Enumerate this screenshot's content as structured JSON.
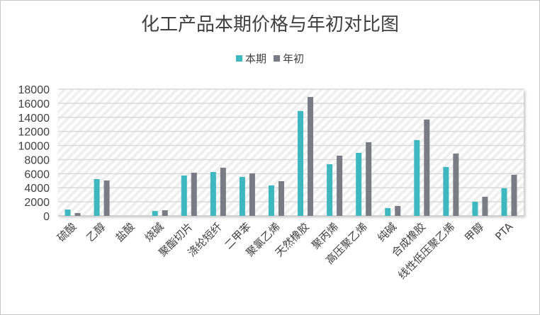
{
  "chart_data": {
    "type": "bar",
    "title": "化工产品本期价格与年初对比图",
    "xlabel": "",
    "ylabel": "",
    "ylim": [
      0,
      18000
    ],
    "yticks": [
      0,
      2000,
      4000,
      6000,
      8000,
      10000,
      12000,
      14000,
      16000,
      18000
    ],
    "grid": true,
    "legend_position": "top",
    "categories": [
      "硫酸",
      "乙醇",
      "盐酸",
      "烧碱",
      "聚酯切片",
      "涤纶短纤",
      "二甲苯",
      "聚氯乙烯",
      "天然橡胶",
      "聚丙烯",
      "高压聚乙烯",
      "纯碱",
      "合成橡胶",
      "线性低压聚乙烯",
      "甲醇",
      "PTA"
    ],
    "series": [
      {
        "name": "本期",
        "color": "#3eb8c0",
        "values": [
          900,
          5230,
          0,
          700,
          5740,
          6240,
          5540,
          4330,
          14900,
          7350,
          8960,
          1110,
          10770,
          6950,
          2010,
          3930
        ]
      },
      {
        "name": "年初",
        "color": "#7a7b85",
        "values": [
          400,
          5030,
          0,
          800,
          6140,
          6850,
          6040,
          4930,
          16900,
          8560,
          10470,
          1410,
          13690,
          8860,
          2720,
          5840
        ]
      }
    ]
  }
}
